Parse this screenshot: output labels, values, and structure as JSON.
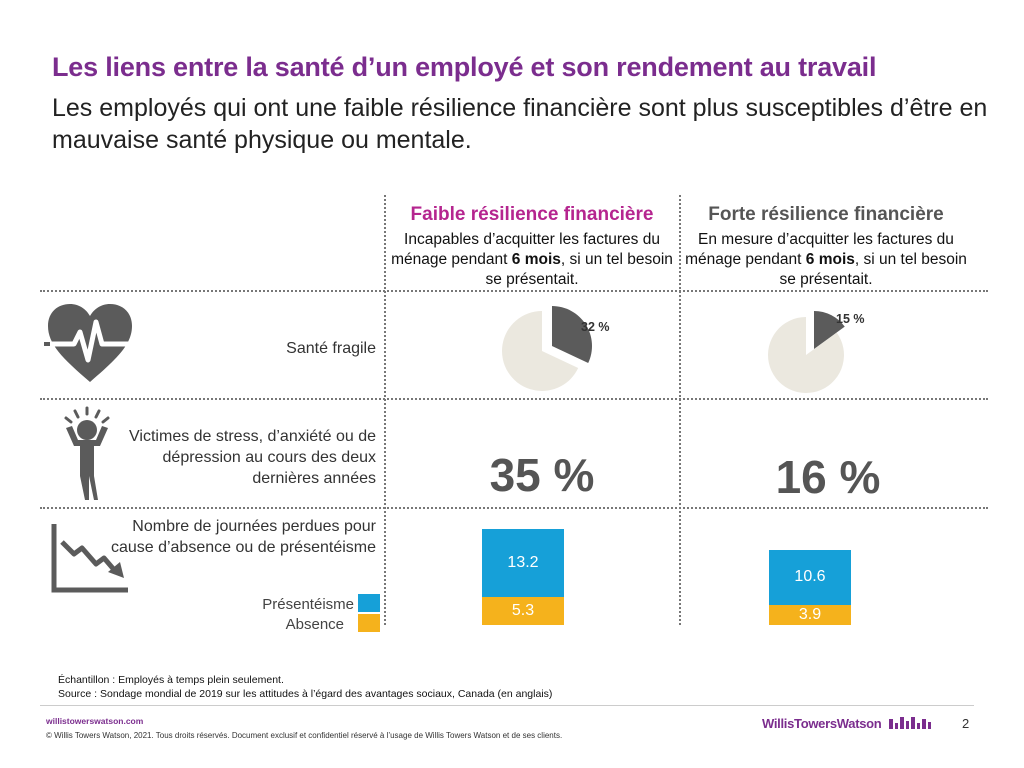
{
  "header": {
    "title": "Les liens entre la santé d’un employé et son rendement au travail",
    "subtitle": "Les employés qui ont une faible résilience financière sont plus susceptibles d’être en mauvaise santé physique ou mentale."
  },
  "columns": [
    {
      "heading": "Faible résilience financière",
      "desc_pre": "Incapables d’acquitter les factures du ménage pendant ",
      "desc_bold": "6 mois",
      "desc_post": ", si un tel besoin se présentait."
    },
    {
      "heading": "Forte résilience financière",
      "desc_pre": "En mesure d’acquitter les factures du ménage pendant ",
      "desc_bold": "6 mois",
      "desc_post": ", si un tel besoin se présentait."
    }
  ],
  "rows": {
    "health_label": "Santé fragile",
    "stress_label": "Victimes de stress, d’anxiété ou de dépression au cours des deux dernières années",
    "days_label": "Nombre de journées perdues pour cause d’absence ou de présentéisme"
  },
  "pie_labels": [
    "32 %",
    "15 %"
  ],
  "stress_values": [
    "35 %",
    "16 %"
  ],
  "bar_labels": {
    "low": {
      "presenteeism": "13.2",
      "absence": "5.3"
    },
    "high": {
      "presenteeism": "10.6",
      "absence": "3.9"
    }
  },
  "legend": {
    "presenteeism": "Présentéisme",
    "absence": "Absence"
  },
  "colors": {
    "title": "#7b2d8e",
    "low_heading": "#b5258f",
    "high_heading": "#555555",
    "presenteeism": "#16a0d8",
    "absence": "#f5b21c",
    "pie_slice": "#5b5b5b",
    "pie_rest": "#ebe8df",
    "icon": "#5b5b5b"
  },
  "chart_data": [
    {
      "type": "pie",
      "title": "Santé fragile",
      "series": [
        {
          "name": "Faible résilience financière",
          "values": [
            32,
            68
          ]
        },
        {
          "name": "Forte résilience financière",
          "values": [
            15,
            85
          ]
        }
      ]
    },
    {
      "type": "bar",
      "stacked": true,
      "title": "Nombre de journées perdues pour cause d’absence ou de présentéisme",
      "categories": [
        "Faible résilience financière",
        "Forte résilience financière"
      ],
      "series": [
        {
          "name": "Présentéisme",
          "values": [
            13.2,
            10.6
          ]
        },
        {
          "name": "Absence",
          "values": [
            5.3,
            3.9
          ]
        }
      ]
    }
  ],
  "footer": {
    "sample": "Échantillon : Employés à temps plein seulement.",
    "source": "Source : Sondage mondial de 2019 sur les attitudes à l’égard des avantages sociaux, Canada (en anglais)",
    "url": "willistowerswatson.com",
    "copyright": "© Willis Towers Watson, 2021. Tous droits réservés. Document exclusif et confidentiel réservé à l’usage de Willis Towers Watson et de ses clients.",
    "brand": "WillisTowersWatson",
    "page": "2"
  }
}
